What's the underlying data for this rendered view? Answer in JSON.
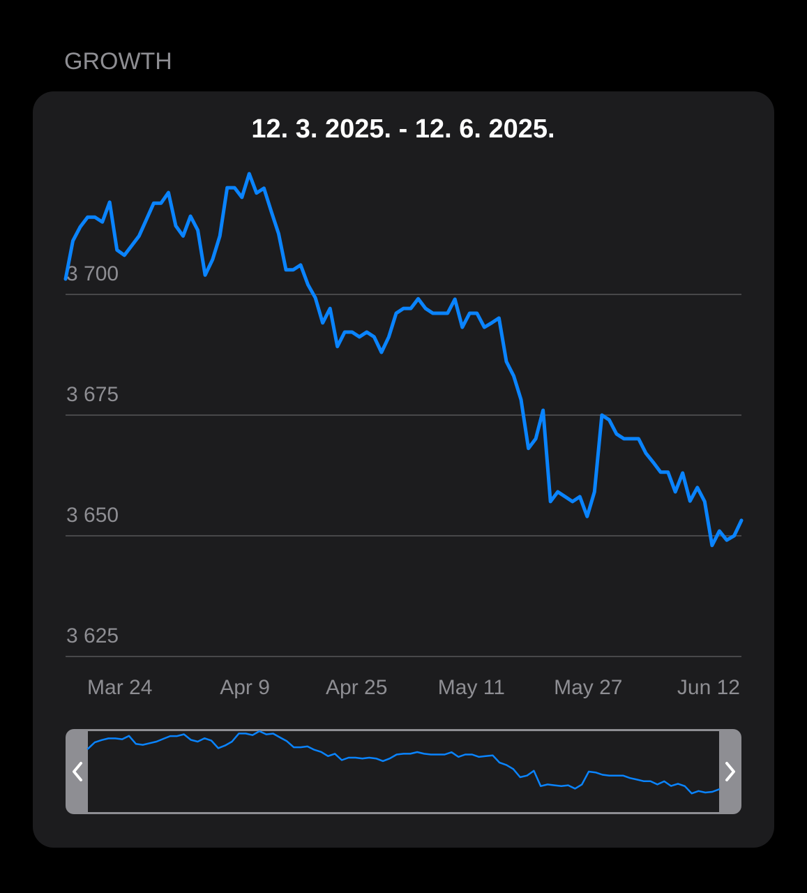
{
  "header": {
    "section_title": "GROWTH"
  },
  "chart_data": {
    "type": "line",
    "title": "12. 3. 2025. - 12. 6. 2025.",
    "categories": [
      null,
      null,
      null,
      null,
      null,
      null,
      null,
      null,
      null,
      null,
      null,
      null,
      "Mar 24",
      null,
      null,
      null,
      null,
      null,
      null,
      null,
      null,
      null,
      null,
      null,
      null,
      null,
      null,
      null,
      "Apr 9",
      null,
      null,
      null,
      null,
      null,
      null,
      null,
      null,
      null,
      null,
      null,
      null,
      null,
      null,
      null,
      "Apr 25",
      null,
      null,
      null,
      null,
      null,
      null,
      null,
      null,
      null,
      null,
      null,
      null,
      null,
      null,
      null,
      "May 11",
      null,
      null,
      null,
      null,
      null,
      null,
      null,
      null,
      null,
      null,
      null,
      null,
      null,
      null,
      null,
      "May 27",
      null,
      null,
      null,
      null,
      null,
      null,
      null,
      null,
      null,
      null,
      null,
      null,
      null,
      null,
      null,
      "Jun 12"
    ],
    "values": [
      3703.2,
      3711.1,
      3714.0,
      3716.0,
      3716.0,
      3715.0,
      3719.1,
      3709.2,
      3708.1,
      3710.1,
      3712.1,
      3715.5,
      3718.9,
      3718.9,
      3721.1,
      3714.2,
      3712.1,
      3716.2,
      3713.3,
      3704.0,
      3707.2,
      3712.1,
      3722.1,
      3722.1,
      3720.1,
      3725.0,
      3721.0,
      3722.0,
      3717.2,
      3712.6,
      3705.1,
      3705.1,
      3706.1,
      3702.0,
      3699.3,
      3694.1,
      3697.1,
      3689.2,
      3692.2,
      3692.2,
      3691.2,
      3692.2,
      3691.2,
      3688.0,
      3691.2,
      3696.1,
      3697.1,
      3697.1,
      3699.1,
      3697.1,
      3696.1,
      3696.1,
      3696.1,
      3699.0,
      3693.2,
      3696.1,
      3696.1,
      3693.2,
      3694.1,
      3695.1,
      3686.1,
      3683.1,
      3678.2,
      3668.1,
      3670.1,
      3676.0,
      3657.1,
      3659.1,
      3658.1,
      3657.1,
      3658.1,
      3654.0,
      3659.1,
      3675.0,
      3674.0,
      3671.1,
      3670.1,
      3670.1,
      3670.1,
      3667.1,
      3665.2,
      3663.2,
      3663.2,
      3659.1,
      3663.0,
      3657.2,
      3660.0,
      3657.1,
      3648.0,
      3651.0,
      3649.1,
      3650.0,
      3653.2
    ],
    "color": "#0a84ff",
    "ylim": [
      3625,
      3725
    ],
    "yticks": [
      {
        "value": 3625,
        "label": "3 625"
      },
      {
        "value": 3650,
        "label": "3 650"
      },
      {
        "value": 3675,
        "label": "3 675"
      },
      {
        "value": 3700,
        "label": "3 700"
      }
    ],
    "grid": true
  }
}
